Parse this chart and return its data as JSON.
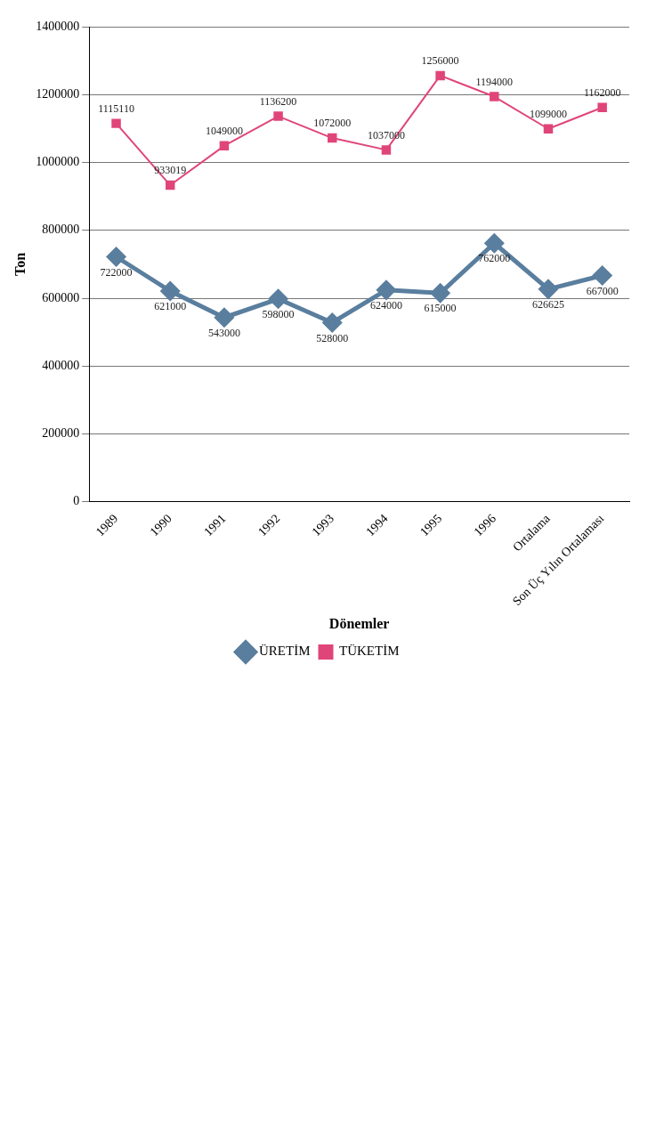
{
  "chart_data": {
    "type": "line",
    "xlabel": "Dönemler",
    "ylabel": "Ton",
    "categories": [
      "1989",
      "1990",
      "1991",
      "1992",
      "1993",
      "1994",
      "1995",
      "1996",
      "Ortalama",
      "Son Üç Yılın Ortalaması"
    ],
    "series": [
      {
        "name": "ÜRETİM",
        "color": "#5a7e9e",
        "marker": "diamond",
        "values": [
          722000,
          621000,
          543000,
          598000,
          528000,
          624000,
          615000,
          762000,
          626625,
          667000
        ]
      },
      {
        "name": "TÜKETİM",
        "color": "#e0457a",
        "marker": "square",
        "values": [
          1115110,
          933019,
          1049000,
          1136200,
          1072000,
          1037000,
          1256000,
          1194000,
          1099000,
          1162000
        ]
      }
    ],
    "ylim": [
      0,
      1400000
    ],
    "yticks": [
      0,
      200000,
      400000,
      600000,
      800000,
      1000000,
      1200000,
      1400000
    ],
    "grid": "y",
    "legend": "bottom",
    "data_labels": true,
    "line_style": "solid"
  }
}
